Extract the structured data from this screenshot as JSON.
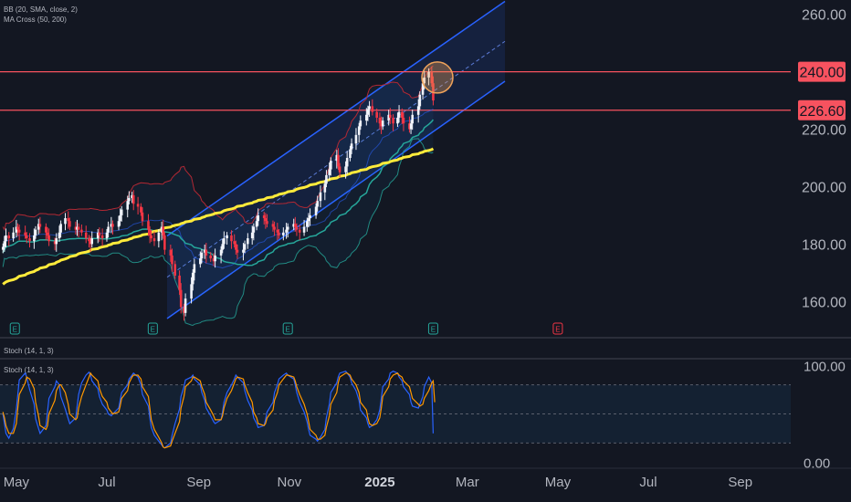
{
  "indicators": {
    "bb": "BB (20, SMA, close, 2)",
    "ma_cross": "MA Cross (50, 200)",
    "stoch_top": "Stoch (14, 1, 3)",
    "stoch_bottom": "Stoch (14, 1, 3)"
  },
  "earnings_marker": "E",
  "colors": {
    "background": "#131722",
    "up_candle": "#f0f3fa",
    "down_candle": "#f23645",
    "ma50": "#26a69a",
    "ma200": "#ffeb3b",
    "bb_band": "#b22833",
    "channel": "#2962ff",
    "level_line": "#f7525f",
    "stoch_k": "#2962ff",
    "stoch_d": "#ff9800",
    "highlight_circle": "#f0a35a"
  },
  "chart_data": [
    {
      "type": "candlestick",
      "price_axis": {
        "ticks": [
          "260.00",
          "220.00",
          "200.00",
          "180.00",
          "160.00"
        ],
        "tick_values": [
          260,
          220,
          200,
          180,
          160
        ],
        "range": [
          148,
          265
        ]
      },
      "time_axis": {
        "labels": [
          "May",
          "Jul",
          "Sep",
          "Nov",
          "2025",
          "Mar",
          "May",
          "Jul",
          "Sep"
        ],
        "range": [
          "2024-04-20",
          "2025-10-05"
        ]
      },
      "price_labels": [
        {
          "text": "240.00",
          "value": 240
        },
        {
          "text": "226.60",
          "value": 226.6
        }
      ],
      "horizontal_levels": [
        240,
        226.6
      ],
      "candles_start": "2024-04-22",
      "candles_end": "2025-02-07",
      "close": [
        179,
        181,
        183,
        182,
        184,
        186,
        185,
        184,
        183,
        182,
        181,
        183,
        185,
        187,
        186,
        184,
        183,
        181,
        180,
        182,
        184,
        187,
        189,
        188,
        186,
        185,
        186,
        185,
        184,
        182,
        181,
        180,
        182,
        184,
        183,
        182,
        184,
        186,
        187,
        186,
        188,
        190,
        192,
        195,
        196,
        197,
        194,
        193,
        191,
        188,
        185,
        183,
        182,
        181,
        184,
        186,
        183,
        178,
        176,
        173,
        169,
        164,
        158,
        156,
        161,
        166,
        170,
        173,
        175,
        177,
        178,
        176,
        175,
        174,
        176,
        178,
        180,
        182,
        183,
        181,
        180,
        178,
        177,
        178,
        180,
        182,
        184,
        186,
        188,
        190,
        189,
        188,
        187,
        186,
        185,
        184,
        183,
        184,
        185,
        186,
        187,
        186,
        185,
        184,
        186,
        188,
        189,
        190,
        193,
        195,
        198,
        201,
        204,
        206,
        209,
        211,
        207,
        205,
        207,
        210,
        213,
        215,
        218,
        221,
        223,
        225,
        227,
        228,
        226,
        224,
        222,
        221,
        223,
        225,
        224,
        222,
        224,
        226,
        224,
        222,
        220,
        222,
        225,
        228,
        232,
        236,
        238,
        240,
        236,
        230
      ],
      "ma200": [
        166,
        166.4,
        166.8,
        167.2,
        167.6,
        168,
        168.4,
        168.8,
        169.2,
        169.6,
        170,
        170.4,
        170.8,
        171.2,
        171.6,
        172,
        172.4,
        172.8,
        173.2,
        173.6,
        174,
        174.4,
        174.8,
        175.2,
        175.6,
        176,
        176.3,
        176.6,
        176.9,
        177.2,
        177.5,
        177.8,
        178.1,
        178.4,
        178.7,
        179,
        179.3,
        179.6,
        179.9,
        180.2,
        180.5,
        180.8,
        181.1,
        181.4,
        181.7,
        182,
        182.3,
        182.6,
        182.9,
        183.2,
        183.5,
        183.8,
        184.1,
        184.4,
        184.7,
        185,
        185.3,
        185.6,
        185.9,
        186.2,
        186.5,
        186.8,
        187.1,
        187.4,
        187.7,
        188,
        188.3,
        188.6,
        188.9,
        189.2,
        189.5,
        189.8,
        190.1,
        190.4,
        190.7,
        191,
        191.3,
        191.6,
        191.9,
        192.2,
        192.5,
        192.8,
        193.1,
        193.4,
        193.7,
        194,
        194.3,
        194.6,
        194.9,
        195.2,
        195.5,
        195.8,
        196.1,
        196.4,
        196.7,
        197,
        197.3,
        197.6,
        197.9,
        198.2,
        198.5,
        198.8,
        199.1,
        199.4,
        199.7,
        200,
        200.3,
        200.6,
        200.9,
        201.2,
        201.5,
        201.8,
        202.1,
        202.4,
        202.7,
        203,
        203.3,
        203.6,
        203.9,
        204.2,
        204.5,
        204.8,
        205.1,
        205.4,
        205.7,
        206,
        206.3,
        206.6,
        206.9,
        207.2,
        207.5,
        207.8,
        208.1,
        208.4,
        208.7,
        209,
        209.3,
        209.6,
        209.9,
        210.2,
        210.5,
        210.8,
        211.1,
        211.4,
        211.7,
        212,
        212.3,
        212.6,
        212.9,
        213.2
      ]
    },
    {
      "type": "line",
      "title": "Stoch (14, 1, 3)",
      "axis": {
        "ticks": [
          "100.00",
          "0.00"
        ],
        "tick_values": [
          100,
          0
        ],
        "range": [
          -5,
          105
        ],
        "bands": [
          80,
          50,
          20
        ]
      },
      "series": [
        {
          "values": [
            50,
            40,
            30,
            25,
            35,
            55,
            70,
            85,
            92,
            88,
            75,
            60,
            45,
            35,
            30,
            38,
            52,
            66,
            78,
            84,
            80,
            68,
            55,
            45,
            40,
            46,
            58,
            70,
            82,
            90,
            93,
            90,
            84,
            76,
            68,
            60,
            54,
            50,
            48,
            50,
            56,
            64,
            72,
            80,
            86,
            90,
            92,
            88,
            80,
            70,
            58,
            46,
            36,
            28,
            22,
            18,
            16,
            15,
            20,
            28,
            40,
            55,
            68,
            78,
            85,
            88,
            90,
            86,
            80,
            72,
            64,
            56,
            48,
            42,
            40,
            44,
            52,
            62,
            72,
            80,
            86,
            90,
            88,
            82,
            74,
            64,
            54,
            46,
            40,
            36,
            38,
            44,
            52,
            62,
            72,
            80,
            86,
            90,
            92,
            90,
            86,
            80,
            72,
            62,
            52,
            42,
            34,
            28,
            24,
            22,
            26,
            34,
            46,
            60,
            72,
            82,
            88,
            92,
            94,
            92,
            88,
            82,
            74,
            64,
            54,
            46,
            40,
            36,
            38,
            44,
            54,
            66,
            78,
            86,
            92,
            94,
            92,
            88,
            84,
            78,
            70,
            62,
            58,
            56,
            60,
            68,
            78,
            88,
            82,
            30
          ]
        },
        {
          "values": [
            52,
            46,
            38,
            30,
            30,
            40,
            56,
            70,
            82,
            88,
            86,
            76,
            62,
            48,
            38,
            34,
            38,
            50,
            64,
            74,
            80,
            80,
            72,
            60,
            50,
            44,
            46,
            56,
            68,
            80,
            88,
            92,
            90,
            84,
            76,
            68,
            62,
            56,
            52,
            50,
            52,
            58,
            66,
            74,
            82,
            88,
            90,
            90,
            86,
            78,
            68,
            56,
            44,
            34,
            26,
            20,
            16,
            15,
            17,
            22,
            30,
            42,
            56,
            68,
            78,
            84,
            88,
            88,
            84,
            78,
            70,
            62,
            54,
            48,
            44,
            44,
            48,
            56,
            66,
            74,
            82,
            86,
            88,
            86,
            80,
            72,
            62,
            52,
            46,
            40,
            38,
            40,
            46,
            54,
            64,
            72,
            80,
            86,
            90,
            90,
            88,
            84,
            78,
            70,
            60,
            50,
            42,
            34,
            28,
            24,
            24,
            28,
            36,
            48,
            60,
            72,
            82,
            88,
            92,
            92,
            90,
            86,
            80,
            72,
            62,
            54,
            46,
            40,
            38,
            40,
            46,
            56,
            68,
            78,
            86,
            90,
            92,
            90,
            88,
            84,
            78,
            72,
            66,
            60,
            58,
            60,
            66,
            74,
            82,
            84,
            62
          ]
        }
      ]
    }
  ]
}
